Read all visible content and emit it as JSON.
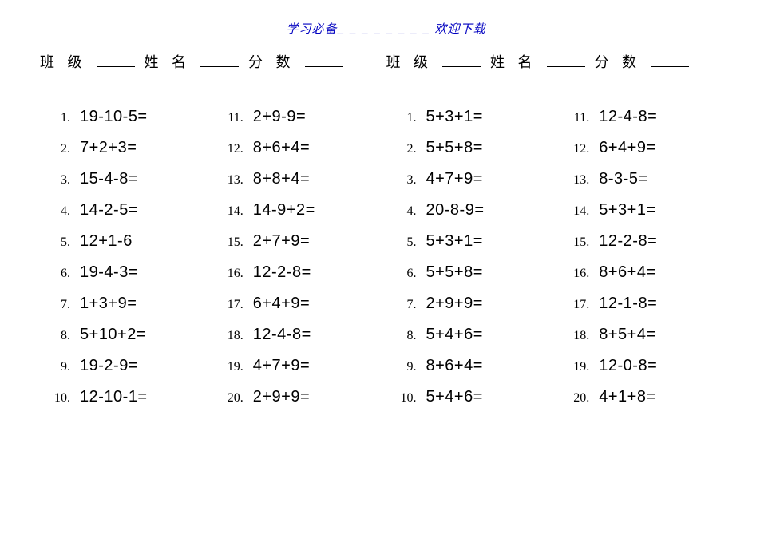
{
  "top_link": {
    "left": "学习必备",
    "right": "欢迎下载"
  },
  "header": {
    "class_label": "班 级",
    "name_label": "姓 名",
    "score_label": "分 数"
  },
  "columns": [
    [
      {
        "n": "1.",
        "eq": "19-10-5="
      },
      {
        "n": "2.",
        "eq": "7+2+3="
      },
      {
        "n": "3.",
        "eq": "15-4-8="
      },
      {
        "n": "4.",
        "eq": "14-2-5="
      },
      {
        "n": "5.",
        "eq": "12+1-6"
      },
      {
        "n": "6.",
        "eq": "19-4-3="
      },
      {
        "n": "7.",
        "eq": "1+3+9="
      },
      {
        "n": "8.",
        "eq": "5+10+2="
      },
      {
        "n": "9.",
        "eq": "19-2-9="
      },
      {
        "n": "10.",
        "eq": "12-10-1="
      }
    ],
    [
      {
        "n": "11.",
        "eq": "2+9-9="
      },
      {
        "n": "12.",
        "eq": "8+6+4="
      },
      {
        "n": "13.",
        "eq": "8+8+4="
      },
      {
        "n": "14.",
        "eq": "14-9+2="
      },
      {
        "n": "15.",
        "eq": "2+7+9="
      },
      {
        "n": "16.",
        "eq": "12-2-8="
      },
      {
        "n": "17.",
        "eq": "6+4+9="
      },
      {
        "n": "18.",
        "eq": "12-4-8="
      },
      {
        "n": "19.",
        "eq": "4+7+9="
      },
      {
        "n": "20.",
        "eq": "2+9+9="
      }
    ],
    [
      {
        "n": "1.",
        "eq": "5+3+1="
      },
      {
        "n": "2.",
        "eq": "5+5+8="
      },
      {
        "n": "3.",
        "eq": "4+7+9="
      },
      {
        "n": "4.",
        "eq": "20-8-9="
      },
      {
        "n": "5.",
        "eq": "5+3+1="
      },
      {
        "n": "6.",
        "eq": "5+5+8="
      },
      {
        "n": "7.",
        "eq": "2+9+9="
      },
      {
        "n": "8.",
        "eq": "5+4+6="
      },
      {
        "n": "9.",
        "eq": "8+6+4="
      },
      {
        "n": "10.",
        "eq": "5+4+6="
      }
    ],
    [
      {
        "n": "11.",
        "eq": "12-4-8="
      },
      {
        "n": "12.",
        "eq": "6+4+9="
      },
      {
        "n": "13.",
        "eq": "8-3-5="
      },
      {
        "n": "14.",
        "eq": "5+3+1="
      },
      {
        "n": "15.",
        "eq": "12-2-8="
      },
      {
        "n": "16.",
        "eq": "8+6+4="
      },
      {
        "n": "17.",
        "eq": "12-1-8="
      },
      {
        "n": "18.",
        "eq": "8+5+4="
      },
      {
        "n": "19.",
        "eq": "12-0-8="
      },
      {
        "n": "20.",
        "eq": "4+1+8="
      }
    ]
  ]
}
